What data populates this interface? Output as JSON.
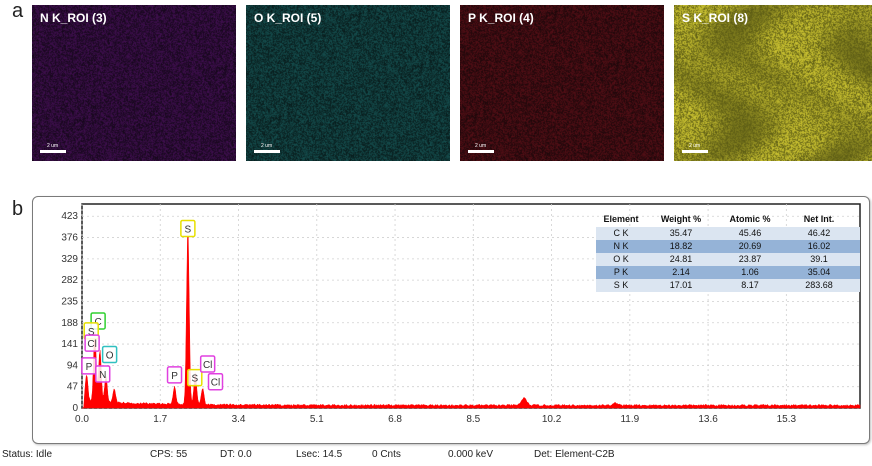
{
  "panel_a_label": "a",
  "panel_b_label": "b",
  "maps": [
    {
      "label": "N K_ROI (3)",
      "scale": "2 um",
      "color": "#a020c8",
      "bg": "#140719"
    },
    {
      "label": "O K_ROI (5)",
      "scale": "2 um",
      "color": "#30c0c0",
      "bg": "#081a1a"
    },
    {
      "label": "P K_ROI (4)",
      "scale": "2 um",
      "color": "#d02030",
      "bg": "#1c070a"
    },
    {
      "label": "S K_ROI (8)",
      "scale": "2 um",
      "color": "#c8c030",
      "bg": "#5a5a14"
    }
  ],
  "chart_data": {
    "type": "area",
    "color": "#ff0000",
    "xlim": [
      0,
      16.9
    ],
    "ylim": [
      0,
      450
    ],
    "x_ticks": [
      "0.0",
      "1.7",
      "3.4",
      "5.1",
      "6.8",
      "8.5",
      "10.2",
      "11.9",
      "13.6",
      "15.3"
    ],
    "y_ticks": [
      "0",
      "47",
      "94",
      "141",
      "188",
      "235",
      "282",
      "329",
      "376",
      "423"
    ],
    "peaks": [
      {
        "x": 0.1,
        "y": 60
      },
      {
        "x": 0.28,
        "y": 155
      },
      {
        "x": 0.39,
        "y": 115
      },
      {
        "x": 0.52,
        "y": 58
      },
      {
        "x": 0.7,
        "y": 30
      },
      {
        "x": 2.01,
        "y": 40
      },
      {
        "x": 2.3,
        "y": 392
      },
      {
        "x": 2.46,
        "y": 70
      },
      {
        "x": 2.62,
        "y": 35
      },
      {
        "x": 9.6,
        "y": 16
      },
      {
        "x": 11.6,
        "y": 5
      }
    ],
    "element_labels": [
      {
        "text": "S",
        "x": 2.3,
        "y": 396,
        "color": "#e8e000"
      },
      {
        "text": "C",
        "x": 0.35,
        "y": 192,
        "color": "#30d030"
      },
      {
        "text": "S",
        "x": 0.2,
        "y": 170,
        "color": "#e8e000"
      },
      {
        "text": "Cl",
        "x": 0.22,
        "y": 143,
        "color": "#e040e0"
      },
      {
        "text": "O",
        "x": 0.6,
        "y": 118,
        "color": "#30c0c0"
      },
      {
        "text": "P",
        "x": 0.15,
        "y": 93,
        "color": "#e040e0"
      },
      {
        "text": "N",
        "x": 0.45,
        "y": 75,
        "color": "#e040e0"
      },
      {
        "text": "P",
        "x": 2.01,
        "y": 73,
        "color": "#e040e0"
      },
      {
        "text": "S",
        "x": 2.45,
        "y": 67,
        "color": "#e8e000"
      },
      {
        "text": "Cl",
        "x": 2.73,
        "y": 97,
        "color": "#e040e0"
      },
      {
        "text": "Cl",
        "x": 2.9,
        "y": 58,
        "color": "#e040e0"
      }
    ],
    "table": {
      "headers": [
        "Element",
        "Weight %",
        "Atomic %",
        "Net Int."
      ],
      "rows": [
        [
          "C K",
          "35.47",
          "45.46",
          "46.42"
        ],
        [
          "N K",
          "18.82",
          "20.69",
          "16.02"
        ],
        [
          "O K",
          "24.81",
          "23.87",
          "39.1"
        ],
        [
          "P K",
          "2.14",
          "1.06",
          "35.04"
        ],
        [
          "S K",
          "17.01",
          "8.17",
          "283.68"
        ]
      ]
    }
  },
  "status": {
    "status": "Status: Idle",
    "cps": "CPS: 55",
    "dt": "DT: 0.0",
    "lsec": "Lsec: 14.5",
    "cnts": "0 Cnts",
    "kev": "0.000 keV",
    "det": "Det: Element-C2B"
  }
}
